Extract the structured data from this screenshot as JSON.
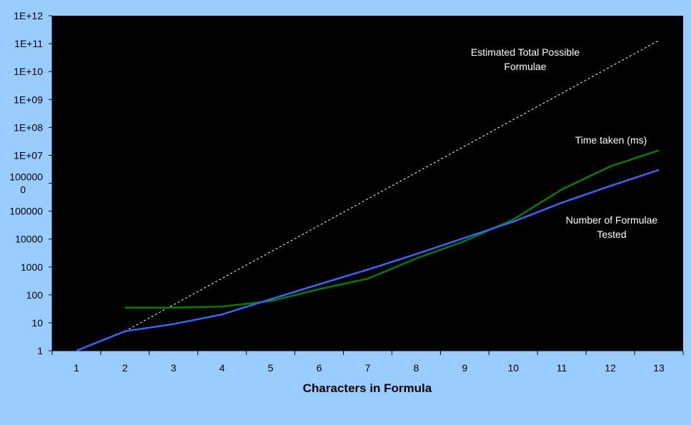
{
  "chart_data": {
    "type": "line",
    "xlabel": "Characters in Formula",
    "ylabel": "",
    "title": "",
    "y_scale": "log",
    "ylim": [
      1,
      1000000000000
    ],
    "x": [
      1,
      2,
      3,
      4,
      5,
      6,
      7,
      8,
      9,
      10,
      11,
      12,
      13
    ],
    "y_tick_labels": [
      "1",
      "10",
      "100",
      "1000",
      "10000",
      "100000",
      "1000000",
      "1E+07",
      "1E+08",
      "1E+09",
      "1E+10",
      "1E+11",
      "1E+12"
    ],
    "x_tick_labels": [
      "1",
      "2",
      "3",
      "4",
      "5",
      "6",
      "7",
      "8",
      "9",
      "10",
      "11",
      "12",
      "13"
    ],
    "grid": false,
    "legend": "none (series labelled inline)",
    "series": [
      {
        "name": "Estimated Total Possible Formulae",
        "color": "#ffffff",
        "style": "dashed",
        "x": [
          2,
          13
        ],
        "values": [
          5,
          130000000000
        ]
      },
      {
        "name": "Time taken (ms)",
        "color": "#008000",
        "style": "solid",
        "x": [
          2,
          3,
          4,
          5,
          6,
          7,
          8,
          9,
          10,
          11,
          12,
          13
        ],
        "values": [
          35,
          35,
          38,
          60,
          160,
          380,
          2000,
          8500,
          50000,
          600000,
          4000000,
          15000000
        ]
      },
      {
        "name": "Number of Formulae Tested",
        "color": "#3366ff",
        "style": "solid",
        "x": [
          1,
          2,
          3,
          4,
          5,
          6,
          7,
          8,
          9,
          10,
          11,
          12,
          13
        ],
        "values": [
          1,
          5,
          9,
          20,
          70,
          240,
          800,
          2900,
          11000,
          42000,
          200000,
          800000,
          3000000
        ]
      }
    ],
    "annotations": [
      {
        "series": "Estimated Total Possible Formulae",
        "lines": [
          "Estimated Total Possible",
          "Formulae"
        ]
      },
      {
        "series": "Time taken (ms)",
        "lines": [
          "Time taken (ms)"
        ]
      },
      {
        "series": "Number of Formulae Tested",
        "lines": [
          "Number of Formulae",
          "Tested"
        ]
      }
    ],
    "colors": {
      "page_background": "#99ccff",
      "plot_background": "#000000"
    }
  }
}
